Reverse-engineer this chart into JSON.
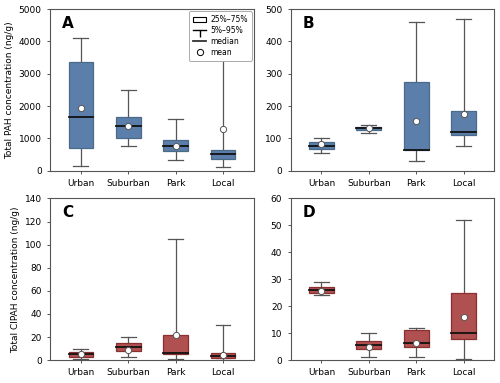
{
  "panel_A": {
    "label": "A",
    "categories": [
      "Urban",
      "Suburban",
      "Park",
      "Local"
    ],
    "q25": [
      700,
      1000,
      600,
      350
    ],
    "q75": [
      3350,
      1650,
      950,
      650
    ],
    "median": [
      1650,
      1380,
      750,
      520
    ],
    "mean": [
      1950,
      1380,
      760,
      1300
    ],
    "whisker_low": [
      150,
      750,
      320,
      100
    ],
    "whisker_high": [
      4100,
      2500,
      1600,
      4500
    ],
    "ylim": [
      0,
      5000
    ],
    "yticks": [
      0,
      1000,
      2000,
      3000,
      4000,
      5000
    ],
    "ylabel": "Total PAH concentration (ng/g)",
    "box_color": "#5b7faa",
    "box_edge_color": "#4a6a8a"
  },
  "panel_B": {
    "label": "B",
    "categories": [
      "Urban",
      "Suburban",
      "Park",
      "Local"
    ],
    "q25": [
      68,
      127,
      65,
      110
    ],
    "q75": [
      90,
      136,
      275,
      185
    ],
    "median": [
      76,
      132,
      65,
      120
    ],
    "mean": [
      82,
      133,
      155,
      175
    ],
    "whisker_low": [
      55,
      118,
      30,
      75
    ],
    "whisker_high": [
      100,
      142,
      460,
      470
    ],
    "ylim": [
      0,
      500
    ],
    "yticks": [
      0,
      100,
      200,
      300,
      400,
      500
    ],
    "ylabel": "",
    "box_color": "#5b7faa",
    "box_edge_color": "#4a6a8a"
  },
  "panel_C": {
    "label": "C",
    "categories": [
      "Urban",
      "Suburban",
      "Park",
      "Local"
    ],
    "q25": [
      3,
      8,
      5,
      2
    ],
    "q75": [
      7,
      15,
      22,
      6
    ],
    "median": [
      5,
      11,
      6,
      3.5
    ],
    "mean": [
      5,
      9,
      22,
      4
    ],
    "whisker_low": [
      1,
      3,
      1,
      0.5
    ],
    "whisker_high": [
      10,
      20,
      105,
      30
    ],
    "ylim": [
      0,
      140
    ],
    "yticks": [
      0,
      20,
      40,
      60,
      80,
      100,
      120,
      140
    ],
    "ylabel": "Total ClPAH concentration (ng/g)",
    "box_color": "#b05050",
    "box_edge_color": "#8a3030"
  },
  "panel_D": {
    "label": "D",
    "categories": [
      "Urban",
      "Suburban",
      "Park",
      "Local"
    ],
    "q25": [
      25,
      4,
      5,
      8
    ],
    "q75": [
      27,
      7,
      11,
      25
    ],
    "median": [
      26,
      5.5,
      6.5,
      10
    ],
    "mean": [
      25.5,
      5,
      6.5,
      16
    ],
    "whisker_low": [
      24,
      1,
      1,
      0.5
    ],
    "whisker_high": [
      29,
      10,
      12,
      52
    ],
    "ylim": [
      0,
      60
    ],
    "yticks": [
      0,
      10,
      20,
      30,
      40,
      50,
      60
    ],
    "ylabel": "",
    "box_color": "#b05050",
    "box_edge_color": "#8a3030"
  },
  "background_color": "#ffffff",
  "axis_bg": "#ffffff"
}
